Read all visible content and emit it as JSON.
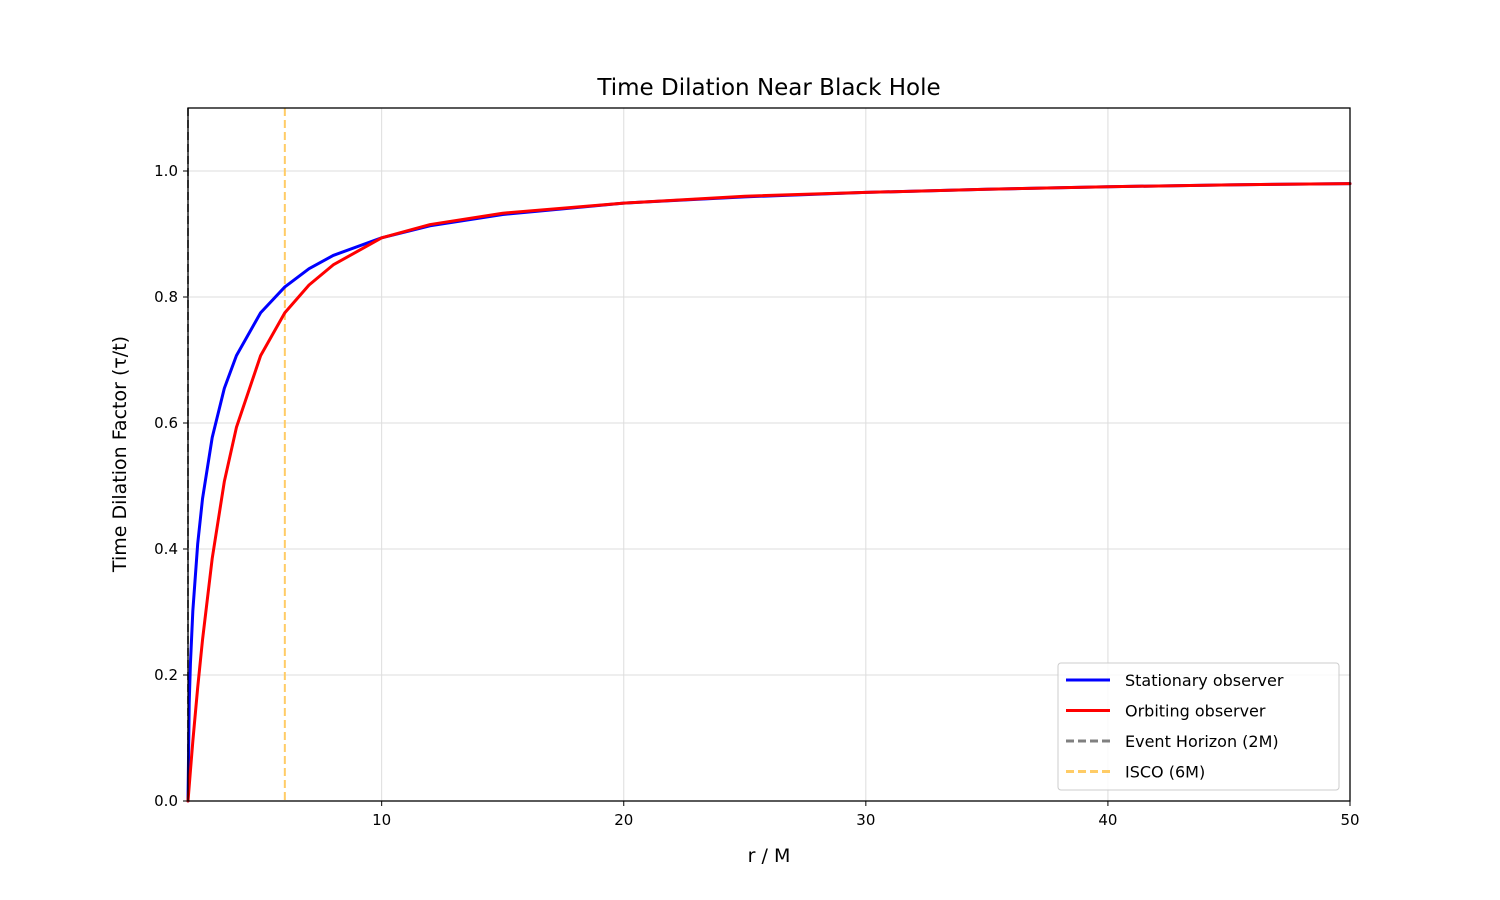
{
  "chart_data": {
    "type": "line",
    "title": "Time Dilation Near Black Hole",
    "xlabel": "r / M",
    "ylabel": "Time Dilation Factor (τ/t)",
    "xlim": [
      2,
      50
    ],
    "ylim": [
      0,
      1.1
    ],
    "xticks": [
      10,
      20,
      30,
      40,
      50
    ],
    "yticks": [
      0.0,
      0.2,
      0.4,
      0.6,
      0.8,
      1.0
    ],
    "ytick_labels": [
      "0.0",
      "0.2",
      "0.4",
      "0.6",
      "0.8",
      "1.0"
    ],
    "grid": true,
    "legend_position": "lower-right",
    "series": [
      {
        "name": "Stationary observer",
        "color": "#0000ff",
        "style": "solid",
        "x": [
          2.0,
          2.05,
          2.1,
          2.2,
          2.4,
          2.6,
          3.0,
          3.5,
          4.0,
          5.0,
          6.0,
          7.0,
          8.0,
          10.0,
          12.0,
          15.0,
          20.0,
          25.0,
          30.0,
          35.0,
          40.0,
          45.0,
          50.0
        ],
        "y": [
          0.0,
          0.156,
          0.218,
          0.302,
          0.408,
          0.48,
          0.577,
          0.655,
          0.707,
          0.775,
          0.816,
          0.845,
          0.866,
          0.894,
          0.913,
          0.931,
          0.949,
          0.959,
          0.966,
          0.971,
          0.975,
          0.978,
          0.98
        ]
      },
      {
        "name": "Orbiting observer",
        "color": "#ff0000",
        "style": "solid",
        "x": [
          2.0,
          2.05,
          2.1,
          2.2,
          2.4,
          2.6,
          3.0,
          3.5,
          4.0,
          5.0,
          6.0,
          7.0,
          8.0,
          10.0,
          12.0,
          15.0,
          20.0,
          25.0,
          30.0,
          35.0,
          40.0,
          45.0,
          50.0
        ],
        "y": [
          0.0,
          0.024,
          0.048,
          0.095,
          0.18,
          0.256,
          0.385,
          0.507,
          0.593,
          0.707,
          0.775,
          0.819,
          0.851,
          0.894,
          0.915,
          0.933,
          0.949,
          0.96,
          0.966,
          0.971,
          0.975,
          0.978,
          0.98
        ]
      }
    ],
    "reference_lines": [
      {
        "name": "Event Horizon (2M)",
        "x": 2,
        "color": "#808080",
        "style": "dashed"
      },
      {
        "name": "ISCO (6M)",
        "x": 6,
        "color": "#ffcc66",
        "style": "dashed"
      }
    ]
  }
}
